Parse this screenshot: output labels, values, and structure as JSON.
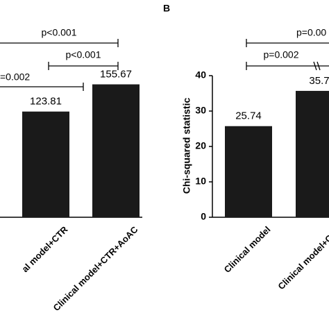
{
  "chart_data": [
    {
      "type": "bar",
      "categories": [
        "al model+CTR",
        "Clinical model+CTR+AoAC"
      ],
      "values": [
        123.81,
        155.67
      ],
      "color": "#1a1a1a",
      "ylim": [
        0,
        200
      ],
      "annotations": [
        "p<0.001",
        "p<0.001",
        "=0.002"
      ]
    },
    {
      "type": "bar",
      "title": "B",
      "ylabel": "Chi-squared statistic",
      "categories": [
        "Clinical model",
        "Clinical model+CTR"
      ],
      "values": [
        25.74,
        35.7
      ],
      "value_labels": [
        "25.74",
        "35.7"
      ],
      "color": "#1a1a1a",
      "ylim": [
        0,
        40
      ],
      "yticks": [
        0,
        10,
        20,
        30,
        40
      ],
      "annotations": [
        "p=0.002",
        "p=0.00"
      ]
    }
  ]
}
